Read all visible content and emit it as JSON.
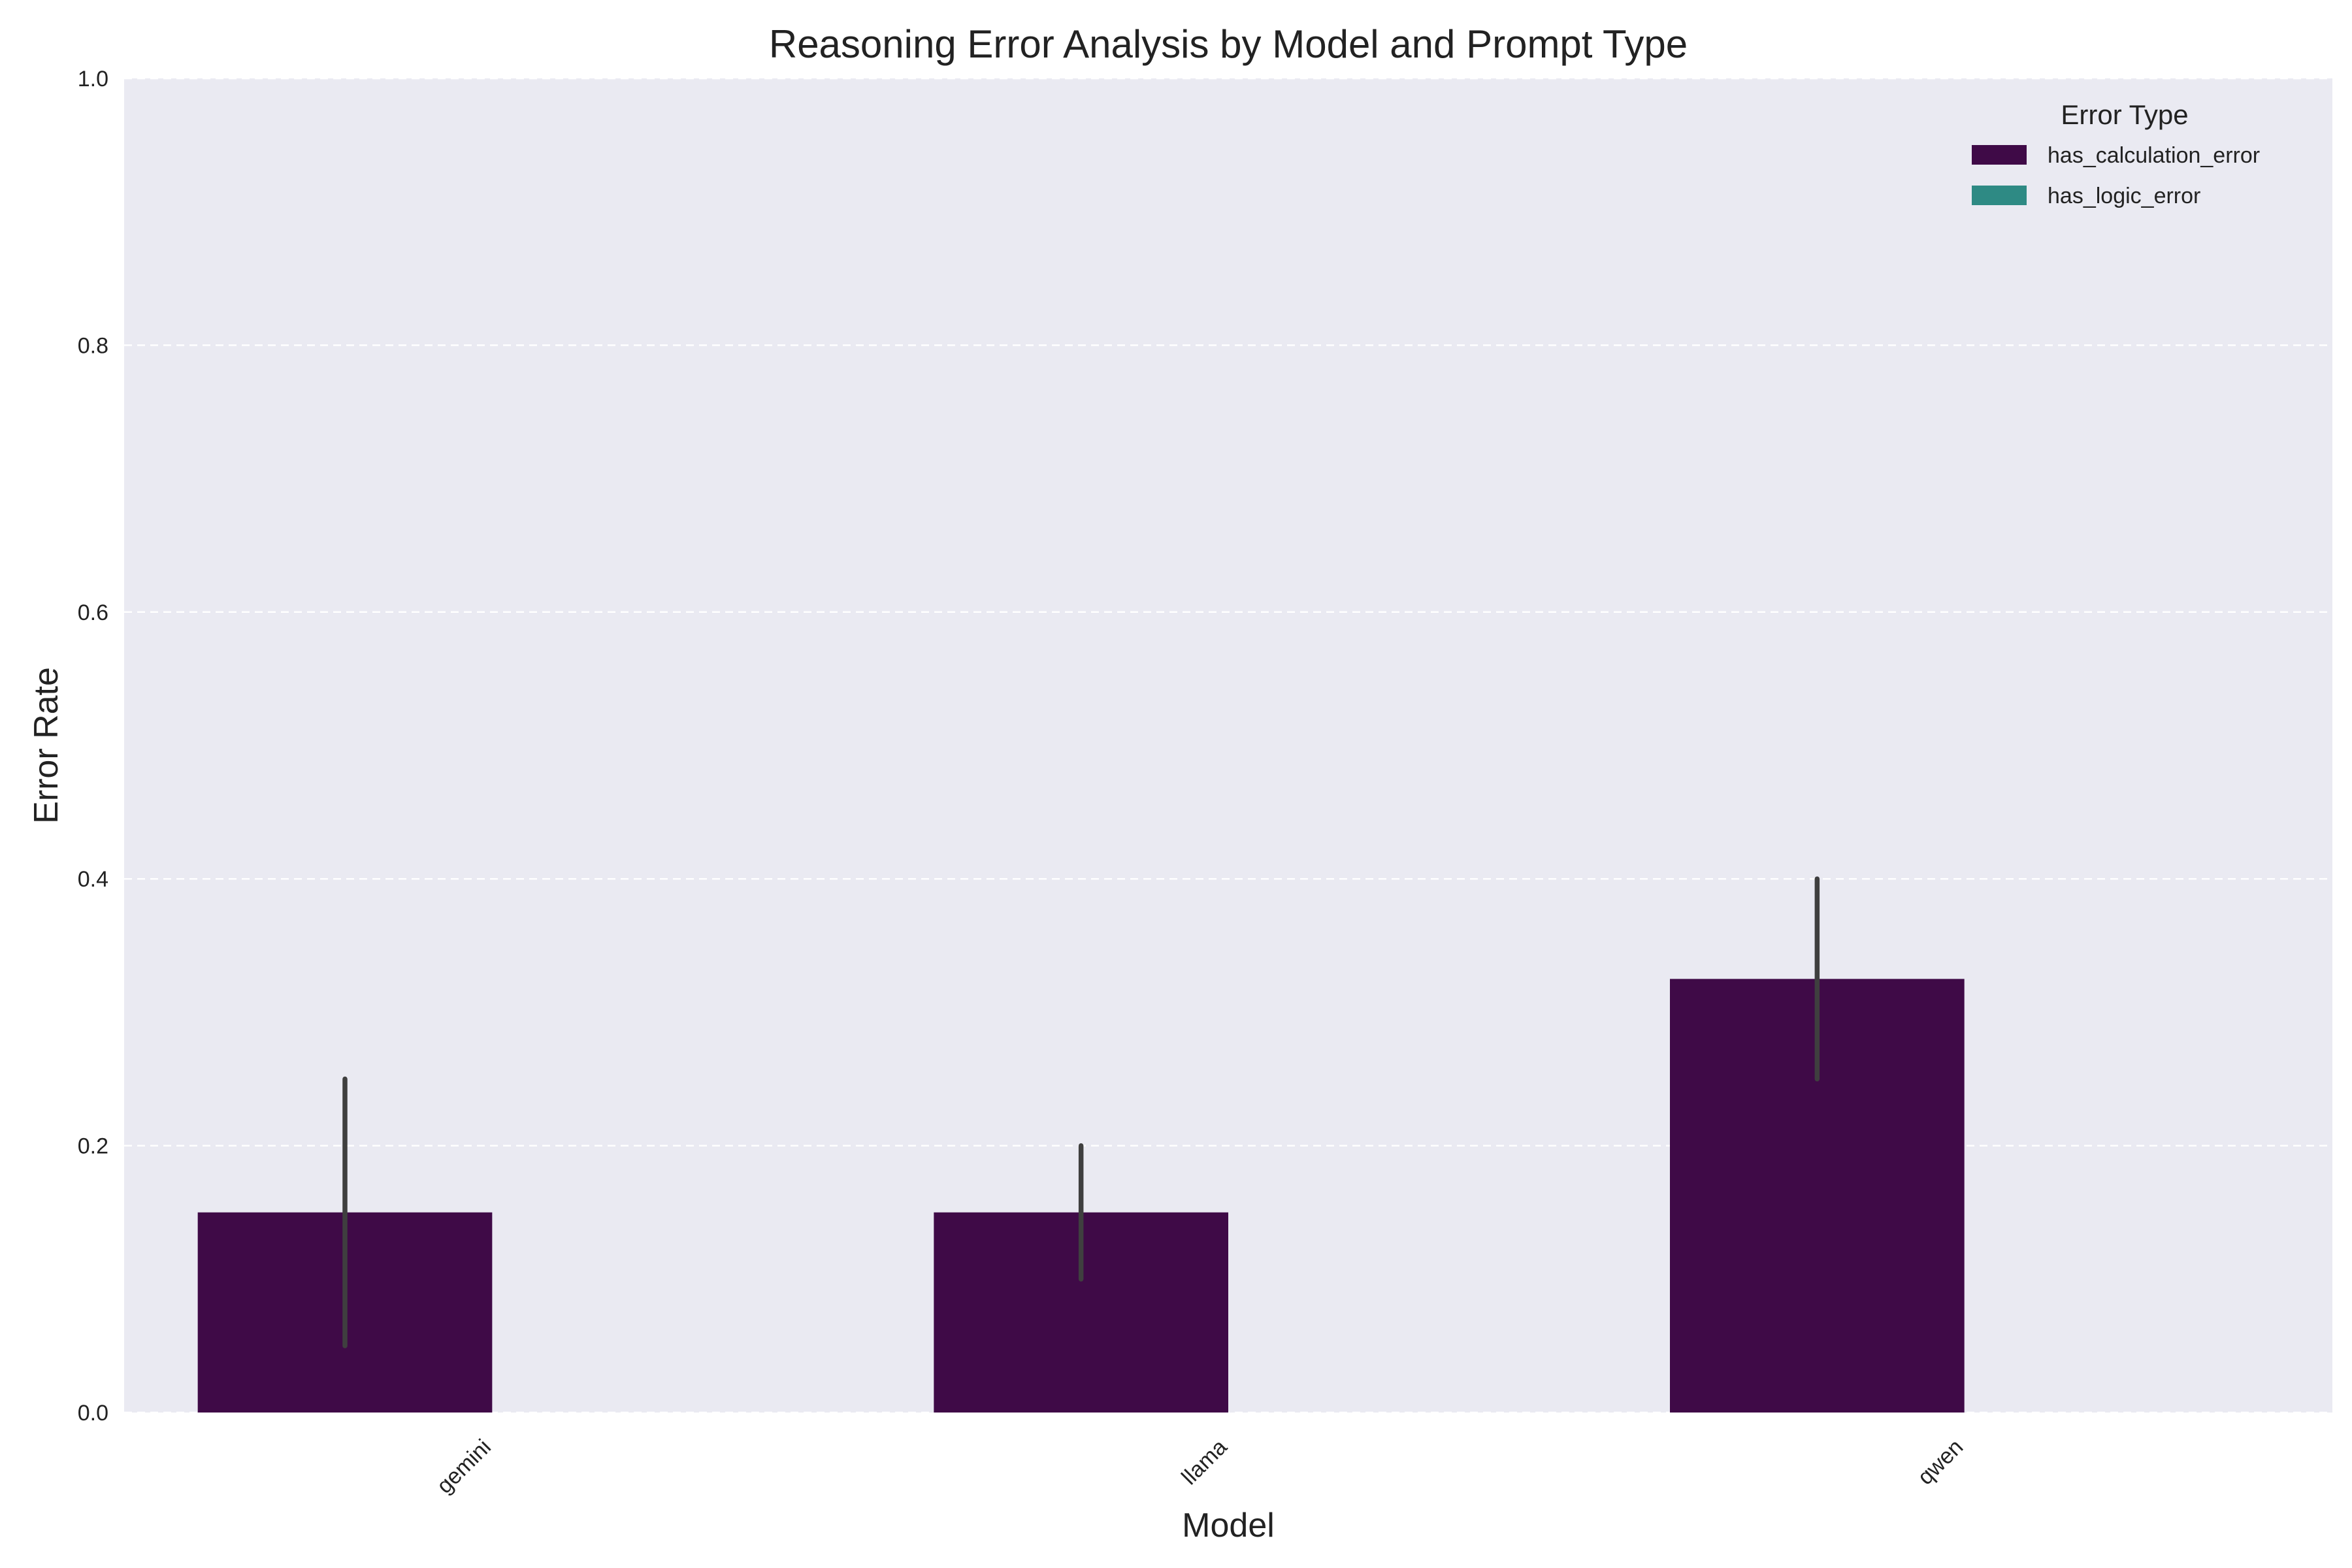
{
  "chart_data": {
    "type": "bar",
    "title": "Reasoning Error Analysis by Model and Prompt Type",
    "xlabel": "Model",
    "ylabel": "Error Rate",
    "categories": [
      "gemini",
      "llama",
      "qwen"
    ],
    "ylim": [
      0,
      1.0
    ],
    "yticks": [
      0.0,
      0.2,
      0.4,
      0.6,
      0.8,
      1.0
    ],
    "ytick_labels": [
      "0.0",
      "0.2",
      "0.4",
      "0.6",
      "0.8",
      "1.0"
    ],
    "grid": true,
    "legend": {
      "title": "Error Type",
      "position": "top-right"
    },
    "series": [
      {
        "name": "has_calculation_error",
        "color": "#3f0a47",
        "values": [
          0.15,
          0.15,
          0.325
        ],
        "error_low": [
          0.05,
          0.1,
          0.25
        ],
        "error_high": [
          0.25,
          0.2,
          0.4
        ]
      },
      {
        "name": "has_logic_error",
        "color": "#2e8a84",
        "values": [
          0.0,
          0.0,
          0.0
        ]
      }
    ]
  }
}
